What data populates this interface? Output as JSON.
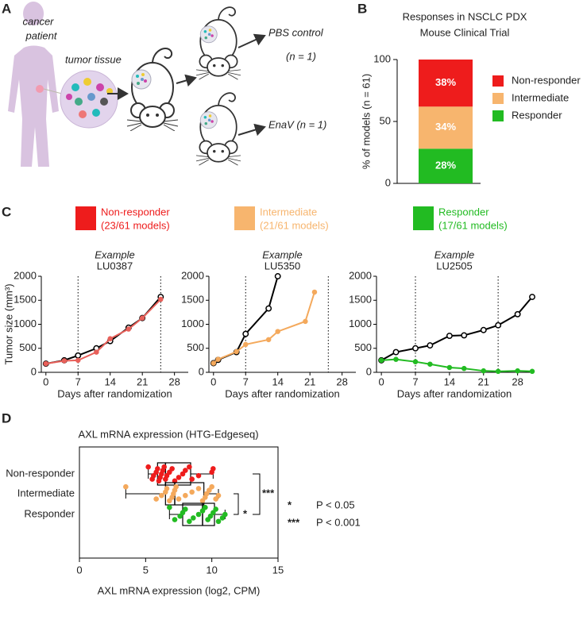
{
  "panel_labels": [
    "A",
    "B",
    "C",
    "D"
  ],
  "diagram": {
    "patient": [
      "cancer",
      "patient"
    ],
    "tissue": "tumor tissue",
    "control": "PBS control",
    "control_n": "(n = 1)",
    "treatment": "EnaV (n = 1)"
  },
  "legend_c": [
    {
      "name": "Non-responder",
      "detail": "(23/61 models)",
      "color": "#ee1c1c"
    },
    {
      "name": "Intermediate",
      "detail": "(21/61 models)",
      "color": "#f7b56e"
    },
    {
      "name": "Responder",
      "detail": "(17/61 models)",
      "color": "#22bb22"
    }
  ],
  "chart_data": [
    {
      "type": "stacked-bar",
      "title": [
        "Responses in NSCLC PDX",
        "Mouse Clinical Trial"
      ],
      "ylabel": "% of models (n = 61)",
      "ylim": [
        0,
        100
      ],
      "yticks": [
        0,
        50,
        100
      ],
      "series": [
        {
          "name": "Responder",
          "color": "#22bb22",
          "values": [
            28
          ],
          "value_labels": [
            "28%"
          ]
        },
        {
          "name": "Intermediate",
          "color": "#f7b56e",
          "values": [
            34
          ],
          "value_labels": [
            "34%"
          ]
        },
        {
          "name": "Non-responder",
          "color": "#ee1c1c",
          "values": [
            38
          ],
          "value_labels": [
            "38%"
          ]
        }
      ]
    },
    {
      "type": "line",
      "subtitle": "Example",
      "title": "LU0387",
      "ylabel": "Tumor size (mm³)",
      "xlabel": "Days after randomization",
      "xlim": [
        -1,
        31
      ],
      "xticks": [
        0,
        7,
        14,
        21,
        28
      ],
      "ylim": [
        0,
        2000
      ],
      "yticks": [
        0,
        500,
        1000,
        1500,
        2000
      ],
      "vlines": [
        7,
        25
      ],
      "series": [
        {
          "color": "#000000",
          "marker": "open",
          "x": [
            0,
            4,
            7,
            11,
            14,
            18,
            21,
            25
          ],
          "y": [
            180,
            250,
            350,
            500,
            650,
            930,
            1130,
            1570
          ]
        },
        {
          "color": "#e8605a",
          "marker": "filled",
          "x": [
            0,
            4,
            7,
            11,
            14,
            18,
            21,
            25
          ],
          "y": [
            180,
            240,
            250,
            420,
            700,
            900,
            1130,
            1520
          ]
        }
      ]
    },
    {
      "type": "line",
      "subtitle": "Example",
      "title": "LU5350",
      "xlabel": "Days after randomization",
      "xlim": [
        -1,
        31
      ],
      "xticks": [
        0,
        7,
        14,
        21,
        28
      ],
      "ylim": [
        0,
        2000
      ],
      "yticks": [
        0,
        500,
        1000,
        1500,
        2000
      ],
      "vlines": [
        7,
        25
      ],
      "series": [
        {
          "color": "#000000",
          "marker": "open",
          "x": [
            0,
            1,
            5,
            7,
            12,
            14
          ],
          "y": [
            190,
            260,
            420,
            800,
            1330,
            2000
          ]
        },
        {
          "color": "#f4a95c",
          "marker": "filled",
          "x": [
            0,
            1,
            5,
            7,
            12,
            14,
            20,
            22
          ],
          "y": [
            190,
            270,
            430,
            580,
            680,
            850,
            1060,
            1670
          ]
        }
      ]
    },
    {
      "type": "line",
      "subtitle": "Example",
      "title": "LU2505",
      "xlabel": "Days after randomization",
      "xlim": [
        -1,
        31
      ],
      "xticks": [
        0,
        7,
        14,
        21,
        28
      ],
      "ylim": [
        0,
        2000
      ],
      "yticks": [
        0,
        500,
        1000,
        1500,
        2000
      ],
      "vlines": [
        7,
        24
      ],
      "series": [
        {
          "color": "#000000",
          "marker": "open",
          "x": [
            0,
            3,
            7,
            10,
            14,
            17,
            21,
            24,
            28,
            31
          ],
          "y": [
            250,
            420,
            500,
            560,
            760,
            770,
            880,
            980,
            1210,
            1570
          ]
        },
        {
          "color": "#22bb22",
          "marker": "filled",
          "x": [
            0,
            3,
            7,
            10,
            14,
            17,
            21,
            24,
            28,
            31
          ],
          "y": [
            250,
            270,
            220,
            170,
            100,
            80,
            30,
            20,
            30,
            20
          ]
        }
      ]
    },
    {
      "type": "box",
      "title": "AXL mRNA expression (HTG-Edgeseq)",
      "xlabel": "AXL mRNA expression (log2, CPM)",
      "categories": [
        "Non-responder",
        "Intermediate",
        "Responder"
      ],
      "colors": [
        "#ee1c1c",
        "#f4a95c",
        "#22bb22"
      ],
      "xlim": [
        0,
        15
      ],
      "xticks": [
        0,
        5,
        10,
        15
      ],
      "boxes": [
        {
          "min": 5.2,
          "q1": 5.9,
          "median": 6.5,
          "q3": 8.4,
          "max": 10.1
        },
        {
          "min": 3.5,
          "q1": 6.5,
          "median": 7.2,
          "q3": 9.4,
          "max": 10.5
        },
        {
          "min": 6.8,
          "q1": 7.8,
          "median": 9.3,
          "q3": 10.2,
          "max": 11.0
        }
      ],
      "points": [
        [
          5.2,
          5.5,
          5.6,
          5.8,
          5.9,
          6.0,
          6.1,
          6.2,
          6.3,
          6.4,
          6.5,
          6.6,
          6.8,
          7.0,
          7.2,
          7.5,
          7.8,
          8.0,
          8.3,
          8.5,
          9.0,
          10.0,
          10.1
        ],
        [
          3.5,
          5.8,
          6.2,
          6.5,
          6.6,
          6.8,
          7.0,
          7.1,
          7.2,
          7.3,
          7.5,
          8.0,
          8.5,
          9.0,
          9.3,
          9.5,
          9.6,
          9.8,
          10.0,
          10.3,
          10.5
        ],
        [
          6.8,
          7.2,
          7.6,
          7.8,
          8.0,
          8.3,
          8.6,
          9.0,
          9.3,
          9.5,
          9.7,
          9.9,
          10.1,
          10.3,
          10.5,
          10.8,
          11.0
        ]
      ],
      "significance_labels": [
        "***",
        "*"
      ],
      "key": [
        {
          "symbol": "*",
          "text": "P < 0.05"
        },
        {
          "symbol": "***",
          "text": "P < 0.001"
        }
      ]
    }
  ]
}
